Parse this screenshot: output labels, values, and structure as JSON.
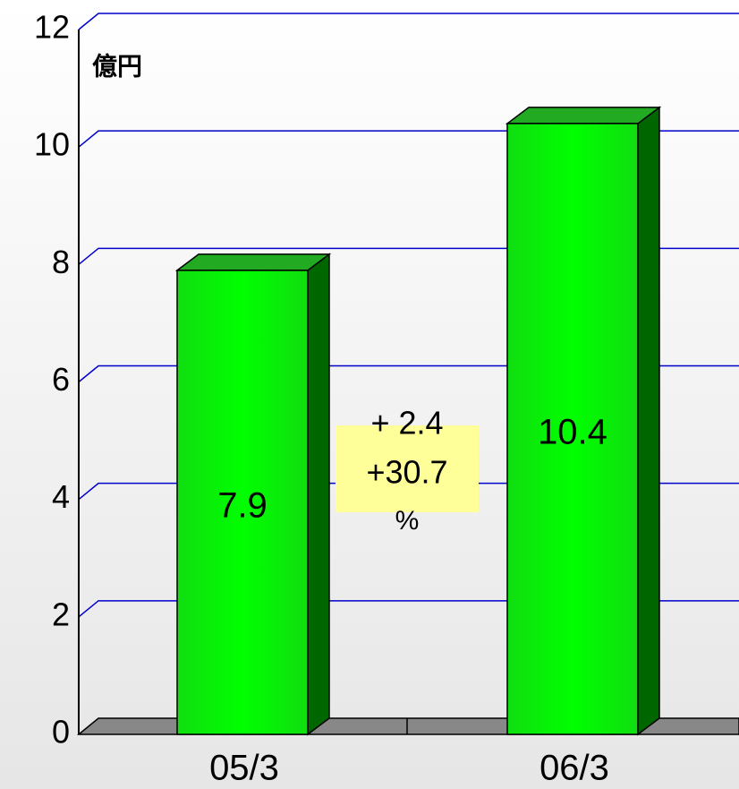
{
  "chart_data": {
    "type": "bar",
    "unit_label": "億円",
    "categories": [
      "05/3",
      "06/3"
    ],
    "values": [
      7.9,
      10.4
    ],
    "color": "#00ff00",
    "ylim": [
      0,
      12
    ],
    "yticks": [
      0,
      2,
      4,
      6,
      8,
      10,
      12
    ],
    "grid": true,
    "annotations": [
      "+ 2.4",
      "+30.7",
      "%"
    ]
  }
}
